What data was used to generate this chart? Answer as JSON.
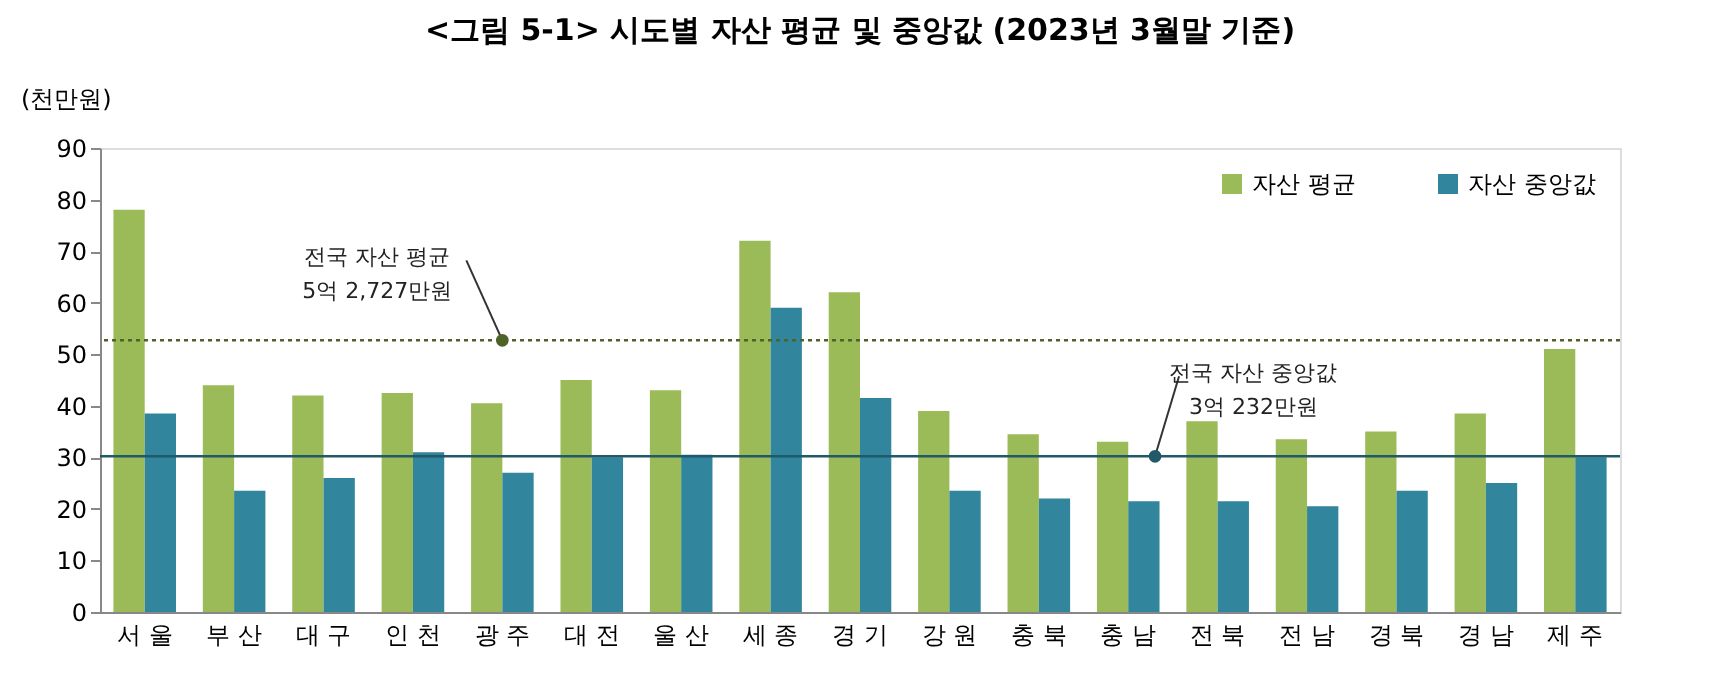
{
  "chart_data": {
    "type": "bar",
    "title": "<그림 5-1> 시도별 자산 평균 및 중앙값 (2023년 3월말 기준)",
    "ylabel": "(천만원)",
    "categories": [
      "서 울",
      "부 산",
      "대 구",
      "인 천",
      "광 주",
      "대 전",
      "울 산",
      "세 종",
      "경 기",
      "강 원",
      "충 북",
      "충 남",
      "전 북",
      "전 남",
      "경 북",
      "경 남",
      "제 주"
    ],
    "series": [
      {
        "name": "자산 평균",
        "color": "#9bbb59",
        "values": [
          78,
          44,
          42,
          42.5,
          40.5,
          45,
          43,
          72,
          62,
          39,
          34.5,
          33,
          37,
          33.5,
          35,
          38.5,
          51
        ]
      },
      {
        "name": "자산 중앙값",
        "color": "#31859c",
        "values": [
          38.5,
          23.5,
          26,
          31,
          27,
          30,
          30.5,
          59,
          41.5,
          23.5,
          22,
          21.5,
          21.5,
          20.5,
          23.5,
          25,
          30
        ]
      }
    ],
    "ylim": [
      0,
      90
    ],
    "yticks": [
      0,
      10,
      20,
      30,
      40,
      50,
      60,
      70,
      80,
      90
    ],
    "ref_lines": [
      {
        "axis": "y",
        "value": 52.7,
        "label": "전국 자산 평균\n5억 2,727만원",
        "color": "#4f6228",
        "line_style": "dotted"
      },
      {
        "axis": "y",
        "value": 30.2,
        "label": "전국 자산 중앙값\n3억 232만원",
        "color": "#215968",
        "line_style": "solid"
      }
    ],
    "legend": "top right",
    "grid": false
  }
}
